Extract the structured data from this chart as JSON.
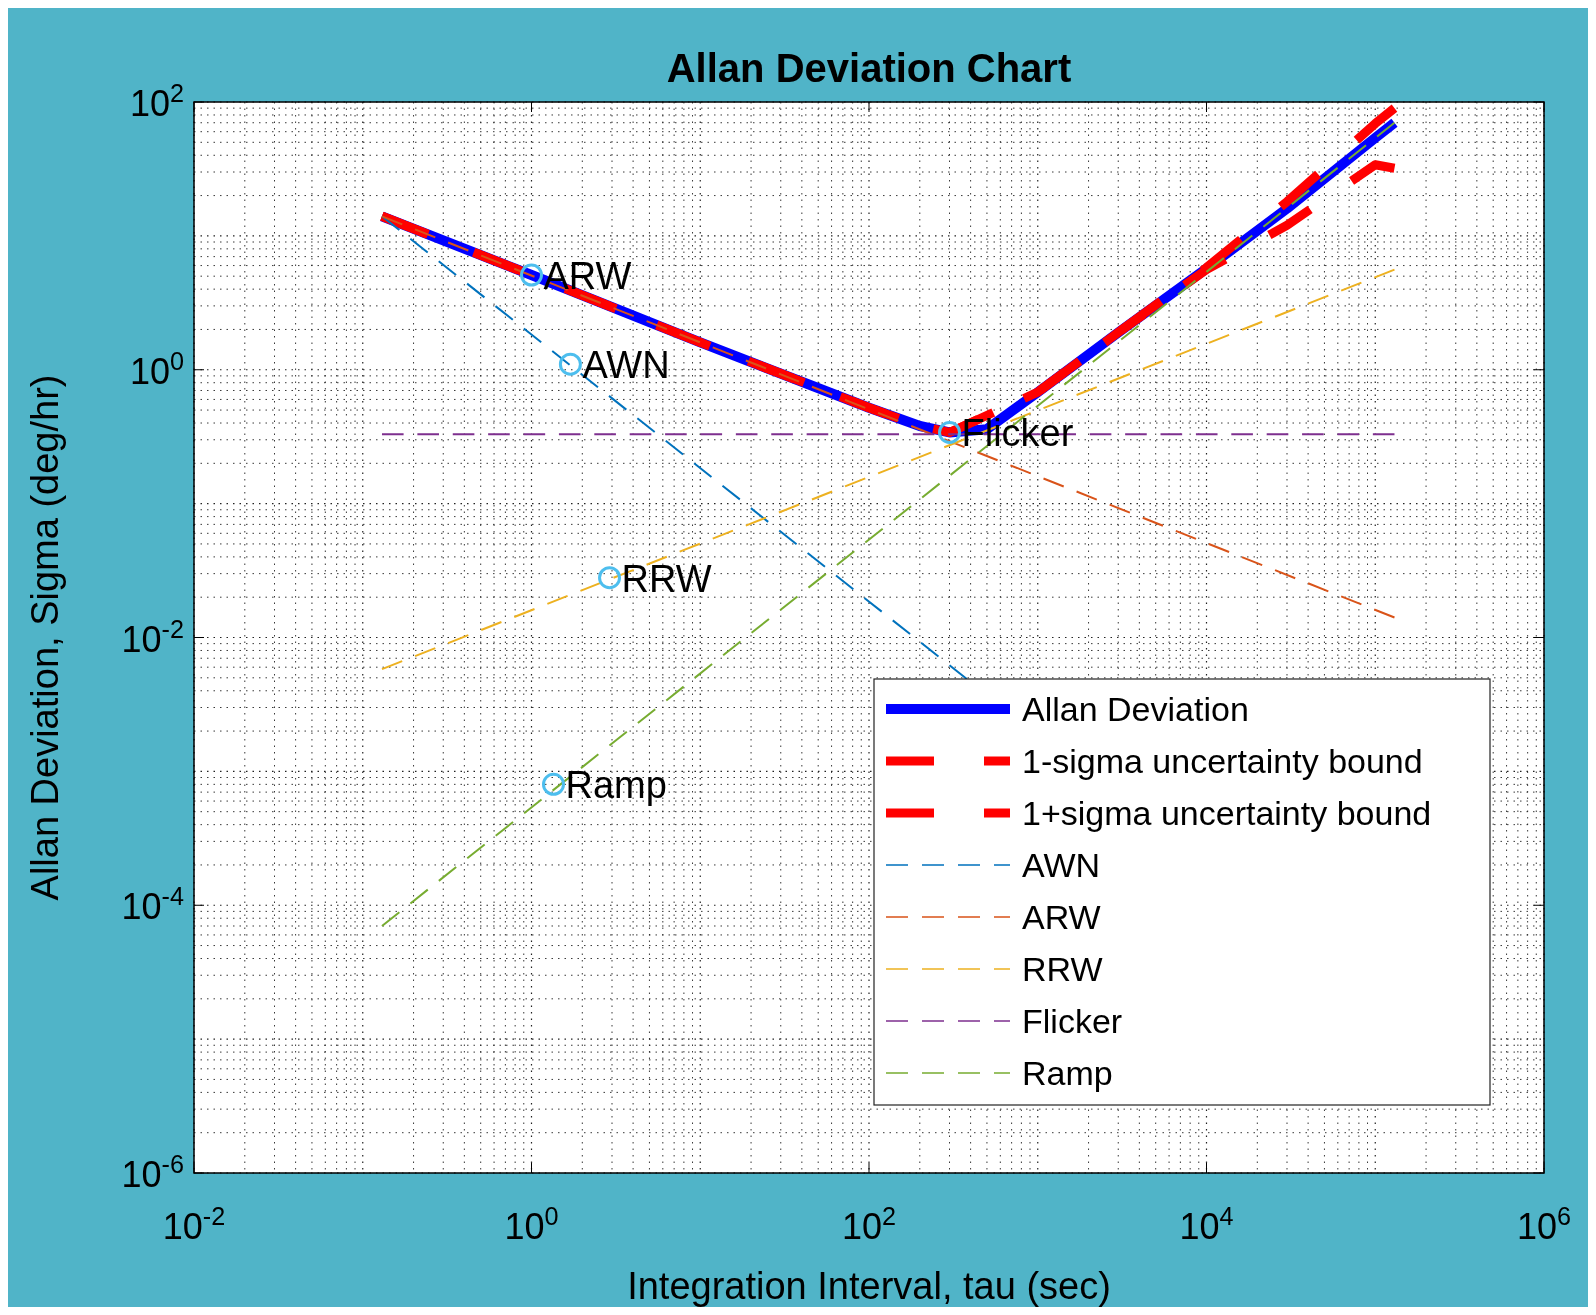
{
  "chart_data": {
    "type": "line",
    "title": "Allan Deviation Chart",
    "xlabel": "Integration Interval, tau (sec)",
    "ylabel": "Allan Deviation, Sigma (deg/hr)",
    "log": "xy",
    "grid": true,
    "legend": "bottom right",
    "xlim": [
      0.01,
      1000000
    ],
    "ylim": [
      1e-06,
      100
    ],
    "xticks": [
      {
        "value": 0.01,
        "label": "10$^{-2}$"
      },
      {
        "value": 1,
        "label": "10$^{0}$"
      },
      {
        "value": 100,
        "label": "10$^{2}$"
      },
      {
        "value": 10000,
        "label": "10$^{4}$"
      },
      {
        "value": 1000000,
        "label": "10$^{6}$"
      }
    ],
    "yticks": [
      {
        "value": 1e-06,
        "label": "10$^{-6}$"
      },
      {
        "value": 0.0001,
        "label": "10$^{-4}$"
      },
      {
        "value": 0.01,
        "label": "10$^{-2}$"
      },
      {
        "value": 1,
        "label": "10$^{0}$"
      },
      {
        "value": 100,
        "label": "10$^{2}$"
      }
    ],
    "series": [
      {
        "name": "Allan Deviation",
        "color": "#0000ff",
        "line_style": "solid",
        "x": [
          0.13,
          1,
          10,
          100,
          200,
          300,
          500,
          1000,
          3000,
          10000,
          30000,
          100000,
          130000
        ],
        "values": [
          14,
          5.1,
          1.6,
          0.52,
          0.38,
          0.34,
          0.36,
          0.68,
          1.9,
          5.7,
          16,
          54,
          70
        ]
      },
      {
        "name": "1-sigma uncertainty bound",
        "color": "#ff0000",
        "line_style": "dashed",
        "x": [
          0.13,
          1,
          10,
          100,
          200,
          300,
          1000,
          3000,
          10000,
          30000,
          100000,
          130000
        ],
        "values": [
          14,
          5.1,
          1.6,
          0.52,
          0.38,
          0.34,
          0.68,
          1.9,
          5.6,
          12,
          34,
          32
        ]
      },
      {
        "name": "1+sigma uncertainty bound",
        "color": "#ff0000",
        "line_style": "dashed",
        "x": [
          0.13,
          1,
          10,
          100,
          200,
          300,
          1000,
          3000,
          10000,
          30000,
          100000,
          130000
        ],
        "values": [
          14,
          5.1,
          1.6,
          0.52,
          0.38,
          0.34,
          0.68,
          1.9,
          5.8,
          18,
          69,
          90
        ]
      },
      {
        "name": "AWN",
        "color": "#0072bd",
        "line_style": "dashed",
        "x": [
          0.13,
          380
        ],
        "values": [
          14,
          0.0049
        ]
      },
      {
        "name": "ARW",
        "color": "#d95319",
        "line_style": "dashed",
        "x": [
          0.13,
          130000
        ],
        "values": [
          14,
          0.0141
        ]
      },
      {
        "name": "RRW",
        "color": "#edb120",
        "line_style": "dashed",
        "x": [
          0.13,
          130000
        ],
        "values": [
          0.0058,
          5.6
        ]
      },
      {
        "name": "Flicker",
        "color": "#7e2f8e",
        "line_style": "dashed",
        "x": [
          0.13,
          130000
        ],
        "values": [
          0.33,
          0.33
        ]
      },
      {
        "name": "Ramp",
        "color": "#77ac30",
        "line_style": "dashed",
        "x": [
          0.13,
          130000
        ],
        "values": [
          7e-05,
          70
        ]
      },
      {
        "type": "scatter",
        "color": "#4dbeee",
        "marker": "circle",
        "x": [
          1,
          1.7,
          2.9,
          300,
          1.35
        ],
        "values": [
          5.1,
          1.1,
          0.028,
          0.34,
          0.0008
        ]
      }
    ],
    "annotations": [
      {
        "text": "ARW",
        "x": 1,
        "y": 5.1
      },
      {
        "text": "AWN",
        "x": 1.7,
        "y": 1.1
      },
      {
        "text": "RRW",
        "x": 2.9,
        "y": 0.028
      },
      {
        "text": "Flicker",
        "x": 300,
        "y": 0.34
      },
      {
        "text": "Ramp",
        "x": 1.35,
        "y": 0.0008
      }
    ]
  }
}
